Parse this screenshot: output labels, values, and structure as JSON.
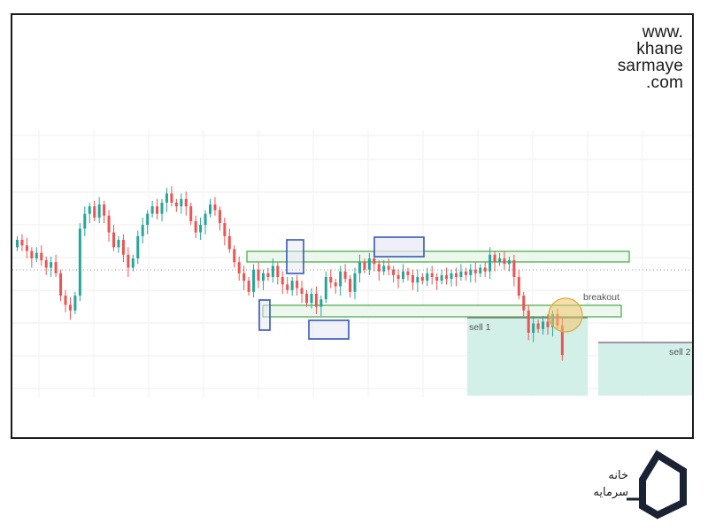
{
  "website": {
    "lines": [
      "www.",
      "khane",
      "sarmaye",
      ".com"
    ]
  },
  "brand": {
    "logo_text_lines": [
      "خانه",
      "سرمایه"
    ],
    "logo_icon": "house-hexagon-icon",
    "colors": {
      "logo": "#1a2233"
    }
  },
  "colors": {
    "bull": "#26a69a",
    "bear": "#ef5350",
    "zone_border": "#4caf50",
    "zone_fill": "#eef7ee",
    "box_border": "#3557b7",
    "box_fill": "#e8e8f6",
    "sell_fill": "#d2efe8",
    "breakout_circle": "#f2c66b",
    "target_line": "#8e6e8e"
  },
  "chart_data": {
    "type": "candlestick",
    "annotations": [
      "breakout",
      "sell 1",
      "sell 2"
    ],
    "y_range": [
      0,
      100
    ],
    "grid": true,
    "candles": [
      {
        "o": 56,
        "c": 60
      },
      {
        "o": 60,
        "c": 57
      },
      {
        "o": 57,
        "c": 54
      },
      {
        "o": 54,
        "c": 50
      },
      {
        "o": 50,
        "c": 53
      },
      {
        "o": 53,
        "c": 49
      },
      {
        "o": 49,
        "c": 45
      },
      {
        "o": 45,
        "c": 48
      },
      {
        "o": 48,
        "c": 42
      },
      {
        "o": 42,
        "c": 30
      },
      {
        "o": 30,
        "c": 25
      },
      {
        "o": 25,
        "c": 22
      },
      {
        "o": 22,
        "c": 30
      },
      {
        "o": 30,
        "c": 66
      },
      {
        "o": 66,
        "c": 74
      },
      {
        "o": 74,
        "c": 78
      },
      {
        "o": 78,
        "c": 72
      },
      {
        "o": 72,
        "c": 79
      },
      {
        "o": 79,
        "c": 73
      },
      {
        "o": 73,
        "c": 64
      },
      {
        "o": 64,
        "c": 56
      },
      {
        "o": 56,
        "c": 60
      },
      {
        "o": 60,
        "c": 52
      },
      {
        "o": 52,
        "c": 45
      },
      {
        "o": 45,
        "c": 50
      },
      {
        "o": 50,
        "c": 62
      },
      {
        "o": 62,
        "c": 68
      },
      {
        "o": 68,
        "c": 74
      },
      {
        "o": 74,
        "c": 78
      },
      {
        "o": 78,
        "c": 74
      },
      {
        "o": 74,
        "c": 80
      },
      {
        "o": 80,
        "c": 85
      },
      {
        "o": 85,
        "c": 80
      },
      {
        "o": 80,
        "c": 78
      },
      {
        "o": 78,
        "c": 82
      },
      {
        "o": 82,
        "c": 78
      },
      {
        "o": 78,
        "c": 70
      },
      {
        "o": 70,
        "c": 64
      },
      {
        "o": 64,
        "c": 68
      },
      {
        "o": 68,
        "c": 74
      },
      {
        "o": 74,
        "c": 79
      },
      {
        "o": 79,
        "c": 76
      },
      {
        "o": 76,
        "c": 69
      },
      {
        "o": 69,
        "c": 62
      },
      {
        "o": 62,
        "c": 55
      },
      {
        "o": 55,
        "c": 48
      },
      {
        "o": 48,
        "c": 42
      },
      {
        "o": 42,
        "c": 38
      },
      {
        "o": 38,
        "c": 32
      },
      {
        "o": 32,
        "c": 44
      },
      {
        "o": 44,
        "c": 38
      },
      {
        "o": 38,
        "c": 42
      },
      {
        "o": 42,
        "c": 40
      },
      {
        "o": 40,
        "c": 46
      },
      {
        "o": 46,
        "c": 40
      },
      {
        "o": 40,
        "c": 36
      },
      {
        "o": 36,
        "c": 33
      },
      {
        "o": 33,
        "c": 38
      },
      {
        "o": 38,
        "c": 34
      },
      {
        "o": 34,
        "c": 31
      },
      {
        "o": 31,
        "c": 26
      },
      {
        "o": 26,
        "c": 31
      },
      {
        "o": 31,
        "c": 24
      },
      {
        "o": 24,
        "c": 28
      },
      {
        "o": 28,
        "c": 40
      },
      {
        "o": 40,
        "c": 37
      },
      {
        "o": 37,
        "c": 35
      },
      {
        "o": 35,
        "c": 43
      },
      {
        "o": 43,
        "c": 39
      },
      {
        "o": 39,
        "c": 32
      },
      {
        "o": 32,
        "c": 42
      },
      {
        "o": 42,
        "c": 48
      },
      {
        "o": 48,
        "c": 44
      },
      {
        "o": 44,
        "c": 50
      },
      {
        "o": 50,
        "c": 47
      },
      {
        "o": 47,
        "c": 43
      },
      {
        "o": 43,
        "c": 46
      },
      {
        "o": 46,
        "c": 44
      },
      {
        "o": 44,
        "c": 41
      },
      {
        "o": 41,
        "c": 39
      },
      {
        "o": 39,
        "c": 43
      },
      {
        "o": 43,
        "c": 41
      },
      {
        "o": 41,
        "c": 37
      },
      {
        "o": 37,
        "c": 40
      },
      {
        "o": 40,
        "c": 38
      },
      {
        "o": 38,
        "c": 42
      },
      {
        "o": 42,
        "c": 40
      },
      {
        "o": 40,
        "c": 38
      },
      {
        "o": 38,
        "c": 41
      },
      {
        "o": 41,
        "c": 39
      },
      {
        "o": 39,
        "c": 42
      },
      {
        "o": 42,
        "c": 40
      },
      {
        "o": 40,
        "c": 43
      },
      {
        "o": 43,
        "c": 41
      },
      {
        "o": 41,
        "c": 44
      },
      {
        "o": 44,
        "c": 42
      },
      {
        "o": 42,
        "c": 45
      },
      {
        "o": 45,
        "c": 43
      },
      {
        "o": 43,
        "c": 52
      },
      {
        "o": 52,
        "c": 48
      },
      {
        "o": 48,
        "c": 50
      },
      {
        "o": 50,
        "c": 47
      },
      {
        "o": 47,
        "c": 49
      },
      {
        "o": 49,
        "c": 40
      },
      {
        "o": 40,
        "c": 30
      },
      {
        "o": 30,
        "c": 22
      },
      {
        "o": 22,
        "c": 10
      },
      {
        "o": 10,
        "c": 15
      },
      {
        "o": 15,
        "c": 12
      },
      {
        "o": 12,
        "c": 16
      },
      {
        "o": 16,
        "c": 13
      },
      {
        "o": 13,
        "c": 20
      },
      {
        "o": 20,
        "c": 14
      },
      {
        "o": 14,
        "c": -2
      }
    ]
  }
}
